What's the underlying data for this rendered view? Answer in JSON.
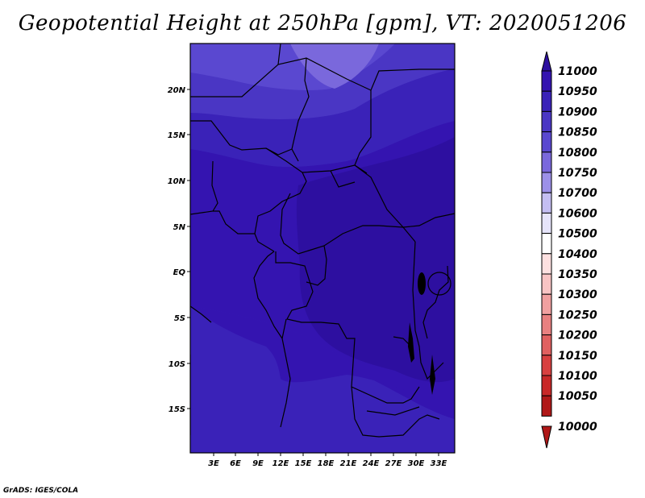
{
  "title": "Geopotential Height at 250hPa [gpm], VT: 2020051206",
  "credit": "GrADS: IGES/COLA",
  "map": {
    "lat_labels": [
      "20N",
      "15N",
      "10N",
      "5N",
      "EQ",
      "5S",
      "10S",
      "15S"
    ],
    "lon_labels": [
      "3E",
      "6E",
      "9E",
      "12E",
      "15E",
      "18E",
      "21E",
      "24E",
      "27E",
      "30E",
      "33E"
    ]
  },
  "colorbar": {
    "levels": [
      "11000",
      "10950",
      "10900",
      "10850",
      "10800",
      "10750",
      "10700",
      "10600",
      "10500",
      "10400",
      "10350",
      "10300",
      "10250",
      "10200",
      "10150",
      "10100",
      "10050",
      "10000"
    ],
    "colors": {
      "c11000": "#2d0fa0",
      "c10950": "#3414b0",
      "c10900": "#3a22b8",
      "c10850": "#4a36c4",
      "c10800": "#5a48d0",
      "c10750": "#7a68dc",
      "c10700": "#9c90e8",
      "c10600": "#c4bef2",
      "c10500": "#e6e4fa",
      "c10400": "#ffffff",
      "c10350": "#fde0e0",
      "c10300": "#f8c4c4",
      "c10250": "#f0a0a0",
      "c10200": "#e88080",
      "c10150": "#e06060",
      "c10100": "#d84040",
      "c10050": "#c82828",
      "c10000": "#b01818"
    }
  }
}
